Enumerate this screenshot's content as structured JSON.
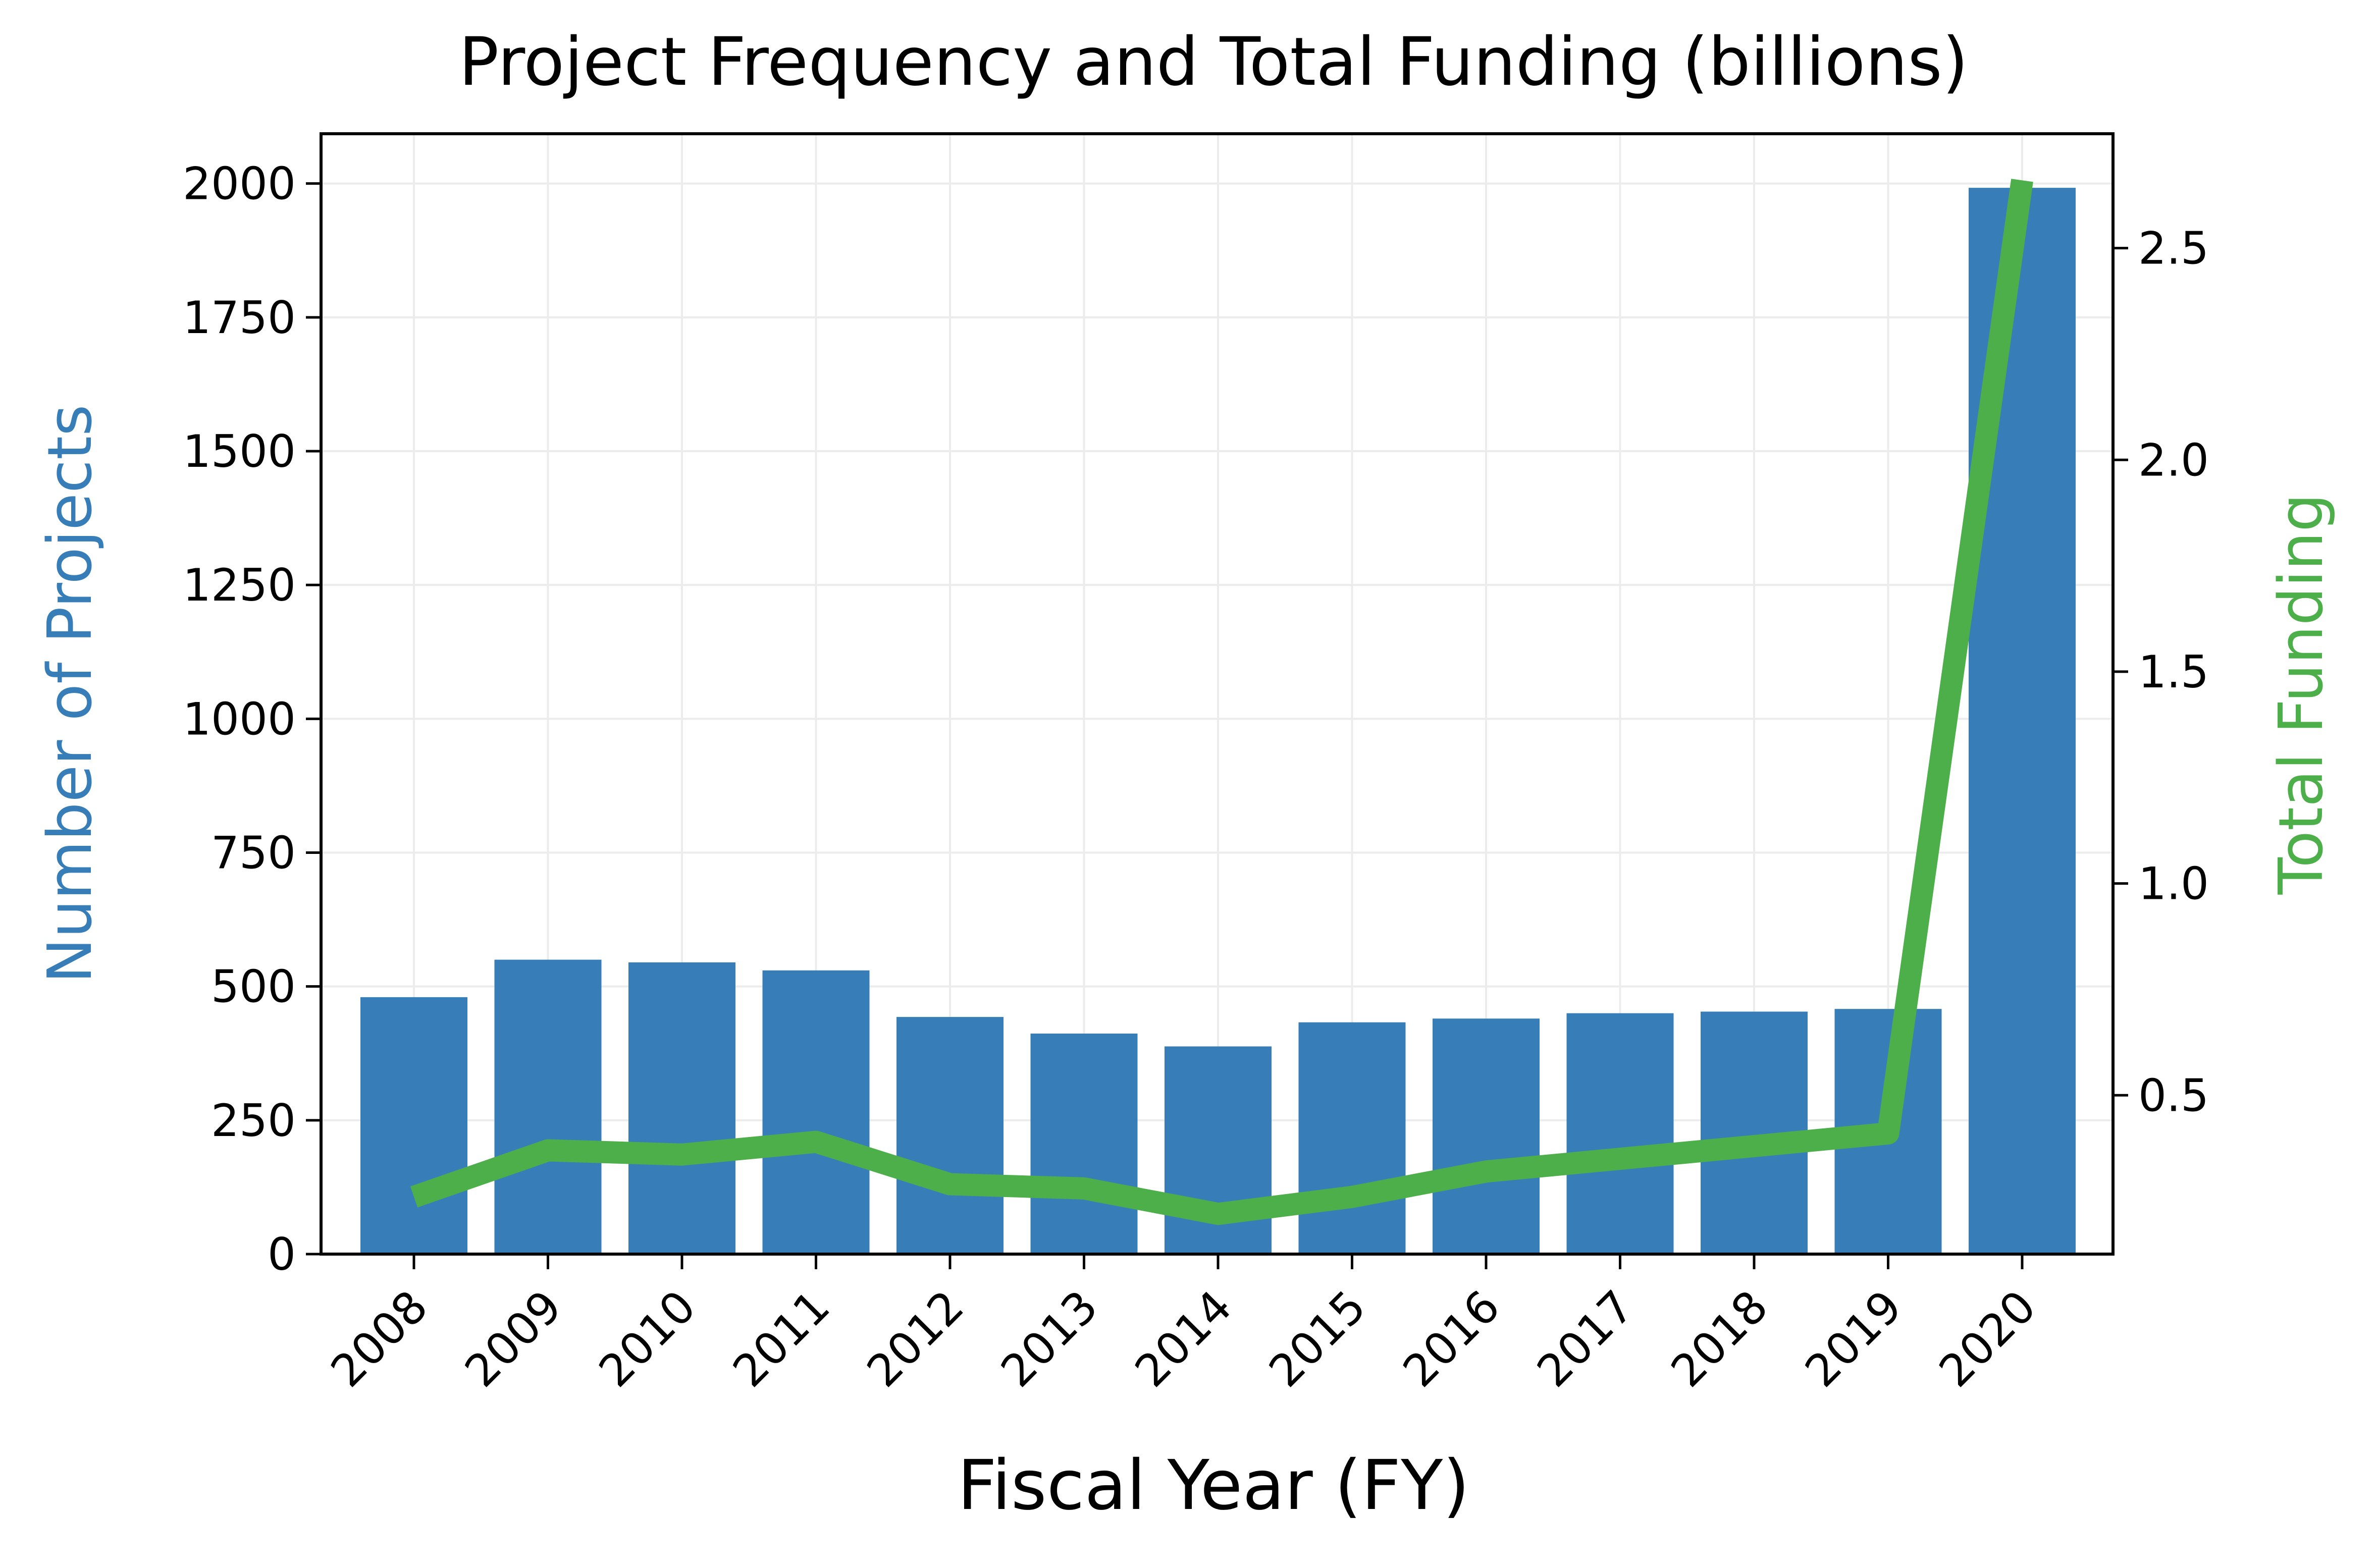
{
  "chart_data": {
    "type": "bar",
    "title": "Project Frequency and Total Funding (billions)",
    "xlabel": "Fiscal Year (FY)",
    "ylabel": "Number of Projects",
    "y2label": "Total Funding",
    "categories": [
      "2008",
      "2009",
      "2010",
      "2011",
      "2012",
      "2013",
      "2014",
      "2015",
      "2016",
      "2017",
      "2018",
      "2019",
      "2020"
    ],
    "series": [
      {
        "name": "Number of Projects",
        "axis": "left",
        "type": "bar",
        "color": "#377eb8",
        "values": [
          480,
          550,
          545,
          530,
          443,
          412,
          388,
          433,
          440,
          450,
          453,
          458,
          1992
        ]
      },
      {
        "name": "Total Funding",
        "axis": "right",
        "type": "line",
        "color": "#4daf4a",
        "values": [
          0.26,
          0.37,
          0.36,
          0.39,
          0.29,
          0.28,
          0.22,
          0.26,
          0.32,
          0.35,
          0.38,
          0.41,
          2.66
        ]
      }
    ],
    "ylim": [
      0,
      2093
    ],
    "y2lim": [
      0.125,
      2.77
    ],
    "yticks": [
      0,
      250,
      500,
      750,
      1000,
      1250,
      1500,
      1750,
      2000
    ],
    "y2ticks": [
      "0.5",
      "1.0",
      "1.5",
      "2.0",
      "2.5"
    ],
    "grid": true,
    "legend": "none"
  }
}
